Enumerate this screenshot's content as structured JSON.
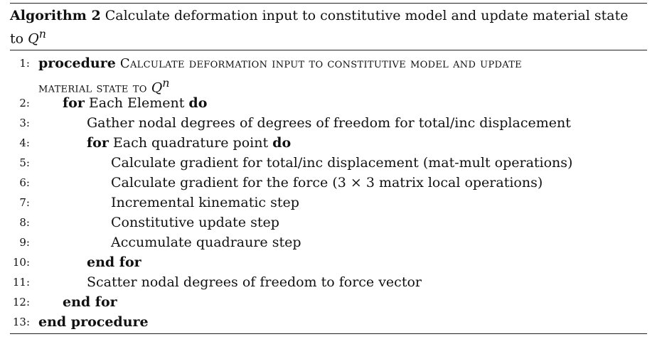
{
  "caption": {
    "label": "Algorithm 2",
    "text": "Calculate deformation input to constitutive model and update material state",
    "text2": "to ",
    "var": "Q",
    "sup": "n"
  },
  "lines": [
    {
      "num": "1:",
      "kw": "procedure",
      "name": "Calculate deformation input to constitutive model and update"
    },
    {
      "num": "",
      "name2": "material state to ",
      "var": "Q",
      "sup": "n"
    },
    {
      "num": "2:",
      "kw1": "for",
      "text": "Each Element",
      "kw2": "do"
    },
    {
      "num": "3:",
      "text": "Gather nodal degrees of degrees of freedom for total/inc displacement"
    },
    {
      "num": "4:",
      "kw1": "for",
      "text": "Each quadrature point",
      "kw2": "do"
    },
    {
      "num": "5:",
      "text": "Calculate gradient for total/inc displacement (mat-mult operations)"
    },
    {
      "num": "6:",
      "text": "Calculate gradient for the force (3 × 3 matrix local operations)"
    },
    {
      "num": "7:",
      "text": "Incremental kinematic step"
    },
    {
      "num": "8:",
      "text": "Constitutive update step"
    },
    {
      "num": "9:",
      "text": "Accumulate quadraure step"
    },
    {
      "num": "10:",
      "kw": "end for"
    },
    {
      "num": "11:",
      "text": "Scatter nodal degrees of freedom to force vector"
    },
    {
      "num": "12:",
      "kw": "end for"
    },
    {
      "num": "13:",
      "kw": "end procedure"
    }
  ]
}
